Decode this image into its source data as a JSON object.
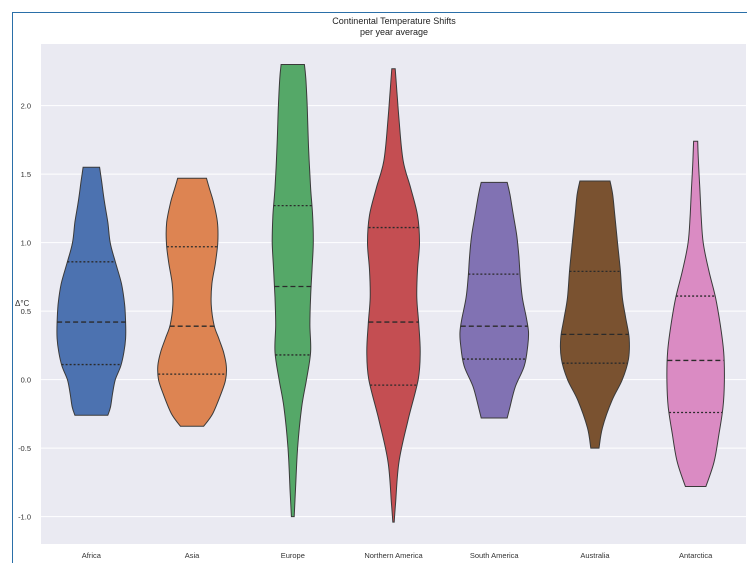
{
  "chart_data": {
    "type": "violin",
    "title": "Continental Temperature Shifts",
    "subtitle": "per year average",
    "ylabel": "Δ°C",
    "xlabel": "",
    "ylim": [
      -1.2,
      2.45
    ],
    "yticks": [
      -1.0,
      -0.5,
      0.0,
      0.5,
      1.0,
      1.5,
      2.0
    ],
    "ytick_labels": [
      "-1.0",
      "-0.5",
      "0.0",
      "0.5",
      "1.0",
      "1.5",
      "2.0"
    ],
    "grid": true,
    "series": [
      {
        "category": "Africa",
        "color": "#4c72b0",
        "quartiles": [
          0.11,
          0.42,
          0.86
        ],
        "profile": [
          [
            -0.26,
            0.48
          ],
          [
            -0.2,
            0.56
          ],
          [
            -0.1,
            0.62
          ],
          [
            0.0,
            0.7
          ],
          [
            0.1,
            0.86
          ],
          [
            0.2,
            0.95
          ],
          [
            0.3,
            1.0
          ],
          [
            0.42,
            1.0
          ],
          [
            0.55,
            0.97
          ],
          [
            0.7,
            0.88
          ],
          [
            0.86,
            0.7
          ],
          [
            1.0,
            0.55
          ],
          [
            1.15,
            0.48
          ],
          [
            1.3,
            0.38
          ],
          [
            1.45,
            0.3
          ],
          [
            1.55,
            0.24
          ]
        ]
      },
      {
        "category": "Asia",
        "color": "#dd8452",
        "quartiles": [
          0.04,
          0.39,
          0.97
        ],
        "profile": [
          [
            -0.34,
            0.34
          ],
          [
            -0.25,
            0.6
          ],
          [
            -0.1,
            0.85
          ],
          [
            0.0,
            0.98
          ],
          [
            0.1,
            1.0
          ],
          [
            0.2,
            0.92
          ],
          [
            0.3,
            0.78
          ],
          [
            0.4,
            0.64
          ],
          [
            0.55,
            0.56
          ],
          [
            0.7,
            0.58
          ],
          [
            0.85,
            0.68
          ],
          [
            1.0,
            0.75
          ],
          [
            1.15,
            0.74
          ],
          [
            1.3,
            0.62
          ],
          [
            1.4,
            0.5
          ],
          [
            1.47,
            0.42
          ]
        ]
      },
      {
        "category": "Europe",
        "color": "#55a868",
        "quartiles": [
          0.18,
          0.68,
          1.27
        ],
        "profile": [
          [
            -1.0,
            0.04
          ],
          [
            -0.8,
            0.08
          ],
          [
            -0.5,
            0.14
          ],
          [
            -0.2,
            0.26
          ],
          [
            0.0,
            0.4
          ],
          [
            0.2,
            0.52
          ],
          [
            0.4,
            0.5
          ],
          [
            0.6,
            0.52
          ],
          [
            0.8,
            0.56
          ],
          [
            1.0,
            0.6
          ],
          [
            1.2,
            0.58
          ],
          [
            1.4,
            0.52
          ],
          [
            1.7,
            0.46
          ],
          [
            2.0,
            0.42
          ],
          [
            2.2,
            0.38
          ],
          [
            2.3,
            0.34
          ]
        ]
      },
      {
        "category": "Northern America",
        "color": "#c44e52",
        "quartiles": [
          -0.04,
          0.42,
          1.11
        ],
        "profile": [
          [
            -1.04,
            0.02
          ],
          [
            -0.9,
            0.06
          ],
          [
            -0.6,
            0.16
          ],
          [
            -0.3,
            0.42
          ],
          [
            0.0,
            0.72
          ],
          [
            0.2,
            0.78
          ],
          [
            0.4,
            0.74
          ],
          [
            0.6,
            0.68
          ],
          [
            0.8,
            0.7
          ],
          [
            1.0,
            0.76
          ],
          [
            1.2,
            0.7
          ],
          [
            1.4,
            0.5
          ],
          [
            1.6,
            0.28
          ],
          [
            1.9,
            0.16
          ],
          [
            2.1,
            0.1
          ],
          [
            2.27,
            0.05
          ]
        ]
      },
      {
        "category": "South America",
        "color": "#8172b3",
        "quartiles": [
          0.15,
          0.39,
          0.77
        ],
        "profile": [
          [
            -0.28,
            0.38
          ],
          [
            -0.2,
            0.46
          ],
          [
            -0.05,
            0.62
          ],
          [
            0.1,
            0.88
          ],
          [
            0.25,
            0.98
          ],
          [
            0.35,
            1.0
          ],
          [
            0.45,
            0.94
          ],
          [
            0.6,
            0.82
          ],
          [
            0.75,
            0.76
          ],
          [
            0.9,
            0.72
          ],
          [
            1.05,
            0.66
          ],
          [
            1.2,
            0.56
          ],
          [
            1.35,
            0.46
          ],
          [
            1.44,
            0.38
          ]
        ]
      },
      {
        "category": "Australia",
        "color": "#7a5230",
        "quartiles": [
          0.12,
          0.33,
          0.79
        ],
        "profile": [
          [
            -0.5,
            0.12
          ],
          [
            -0.35,
            0.22
          ],
          [
            -0.15,
            0.5
          ],
          [
            0.0,
            0.8
          ],
          [
            0.15,
            0.98
          ],
          [
            0.3,
            1.0
          ],
          [
            0.45,
            0.9
          ],
          [
            0.6,
            0.8
          ],
          [
            0.8,
            0.74
          ],
          [
            1.0,
            0.66
          ],
          [
            1.2,
            0.58
          ],
          [
            1.35,
            0.52
          ],
          [
            1.45,
            0.44
          ]
        ]
      },
      {
        "category": "Antarctica",
        "color": "#da8bc3",
        "quartiles": [
          -0.24,
          0.14,
          0.61
        ],
        "profile": [
          [
            -0.78,
            0.3
          ],
          [
            -0.6,
            0.54
          ],
          [
            -0.4,
            0.68
          ],
          [
            -0.2,
            0.8
          ],
          [
            0.0,
            0.84
          ],
          [
            0.2,
            0.82
          ],
          [
            0.4,
            0.72
          ],
          [
            0.6,
            0.58
          ],
          [
            0.8,
            0.38
          ],
          [
            1.0,
            0.22
          ],
          [
            1.2,
            0.16
          ],
          [
            1.4,
            0.12
          ],
          [
            1.6,
            0.08
          ],
          [
            1.74,
            0.06
          ]
        ]
      }
    ]
  }
}
